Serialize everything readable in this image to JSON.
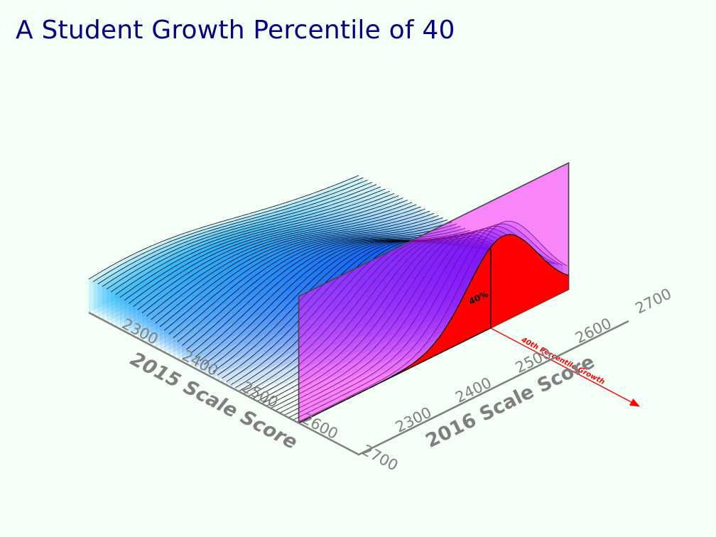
{
  "slide": {
    "title": "A Student Growth Percentile of 40"
  },
  "chart_data": {
    "type": "3d-ridgeline",
    "title": "A Student Growth Percentile of 40",
    "xlabel": "2015 Scale Score",
    "ylabel": "2016 Scale Score",
    "x_ticks": [
      "2300",
      "2400",
      "2500",
      "2600",
      "2700"
    ],
    "y_ticks": [
      "2300",
      "2400",
      "2500",
      "2600",
      "2700"
    ],
    "xlim": [
      2250,
      2700
    ],
    "ylim": [
      2250,
      2700
    ],
    "slice_2015_score": 2600,
    "density_mean_2016": 2590,
    "density_sd_2016": 58,
    "percentile_2016_score": 2570,
    "percentile_area_label": "40%",
    "arrow_label": "40th Percentile Growth",
    "colors": {
      "title": "#000080",
      "axis": "#7f7f7f",
      "plane": "#ff00ff",
      "shaded_area": "#ff0000",
      "surface_low": "#00e5ff",
      "surface_high": "#0000ff"
    }
  }
}
